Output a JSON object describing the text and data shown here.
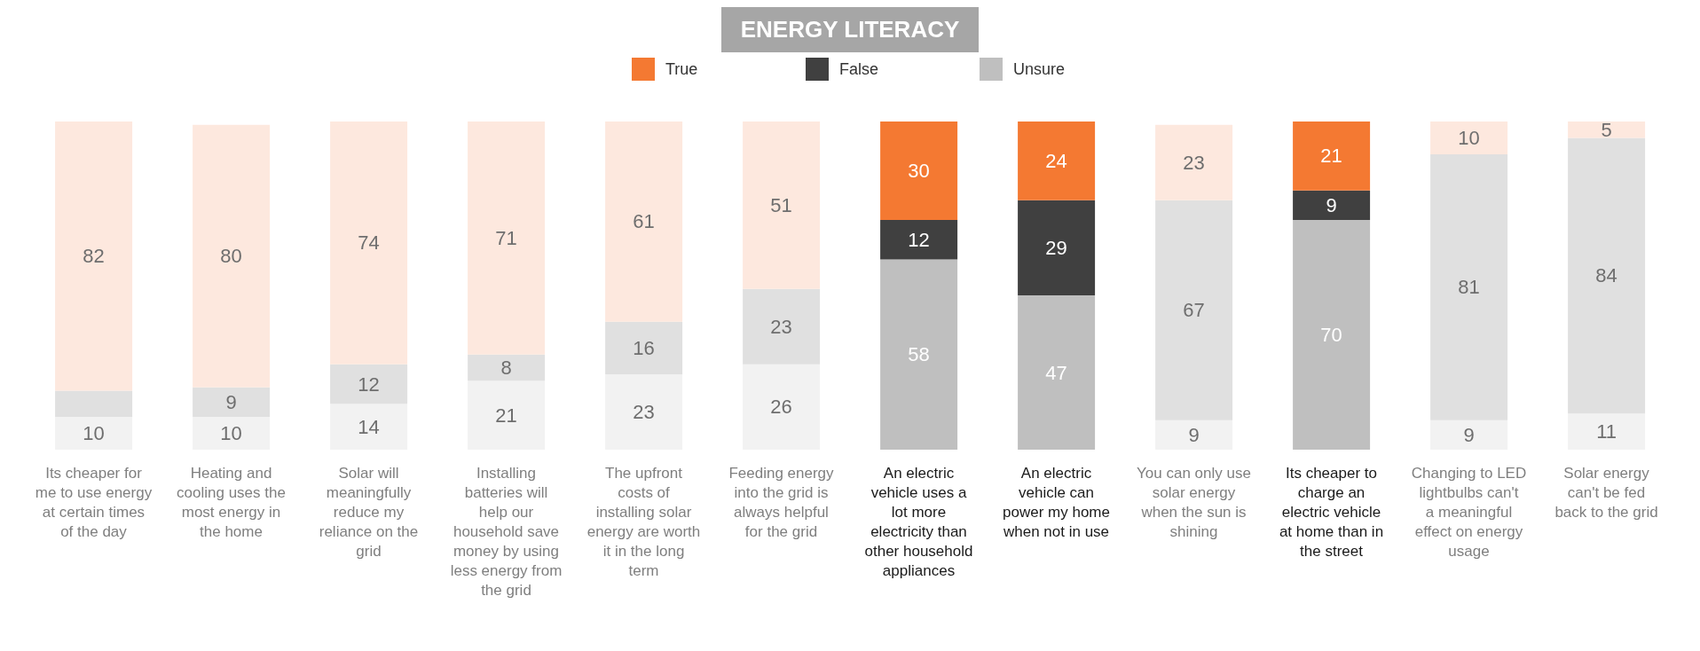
{
  "chart_data": {
    "type": "bar",
    "title": "ENERGY LITERACY",
    "stacked": true,
    "legend": "top",
    "tick_labels": "x",
    "ylim": [
      0,
      100
    ],
    "categories": [
      "Its cheaper for me to use energy at certain times of the day",
      "Heating and cooling uses the most energy in the home",
      "Solar will meaningfully reduce my reliance on the grid",
      "Installing batteries will help our household save money by using less energy from the grid",
      "The upfront costs of installing solar energy are worth it in the long term",
      "Feeding energy into the grid is always helpful for the grid",
      "An electric vehicle uses a lot more electricity than other household appliances",
      "An electric vehicle can power my home when not in use",
      "You can only use solar energy when the sun is shining",
      "Its cheaper to charge an electric vehicle at home than in the street",
      "Changing to LED lightbulbs can't a meaningful effect on energy usage",
      "Solar energy can't be fed back to the grid"
    ],
    "series": [
      {
        "name": "Unsure",
        "color": "#bfbfbf",
        "colors": [
          "#f2f2f2",
          "#f2f2f2",
          "#f2f2f2",
          "#f2f2f2",
          "#f2f2f2",
          "#f2f2f2",
          "#bfbfbf",
          "#bfbfbf",
          "#f2f2f2",
          "#bfbfbf",
          "#f2f2f2",
          "#f2f2f2"
        ],
        "values": [
          10,
          10,
          14,
          21,
          23,
          26,
          58,
          47,
          9,
          70,
          9,
          11
        ],
        "value_labels": [
          "10",
          "10",
          "14",
          "21",
          "23",
          "26",
          "58",
          "47",
          "9",
          "70",
          "9",
          "11"
        ]
      },
      {
        "name": "False",
        "color": "#404040",
        "colors": [
          "#e0e0e0",
          "#e0e0e0",
          "#e0e0e0",
          "#e0e0e0",
          "#e0e0e0",
          "#e0e0e0",
          "#404040",
          "#404040",
          "#e0e0e0",
          "#404040",
          "#e0e0e0",
          "#e0e0e0"
        ],
        "values": [
          8,
          9,
          12,
          8,
          16,
          23,
          12,
          29,
          67,
          9,
          81,
          84
        ],
        "value_labels": [
          null,
          "9",
          "12",
          "8",
          "16",
          "23",
          "12",
          "29",
          "67",
          "9",
          "81",
          "84"
        ]
      },
      {
        "name": "True",
        "color": "#f47932",
        "colors": [
          "#fde8de",
          "#fde8de",
          "#fde8de",
          "#fde8de",
          "#fde8de",
          "#fde8de",
          "#f47932",
          "#f47932",
          "#fde8de",
          "#f47932",
          "#fde8de",
          "#fde8de"
        ],
        "values": [
          82,
          80,
          74,
          71,
          61,
          51,
          30,
          24,
          23,
          21,
          10,
          5
        ],
        "value_labels": [
          "82",
          "80",
          "74",
          "71",
          "61",
          "51",
          "30",
          "24",
          "23",
          "21",
          "10",
          "5"
        ]
      }
    ]
  }
}
